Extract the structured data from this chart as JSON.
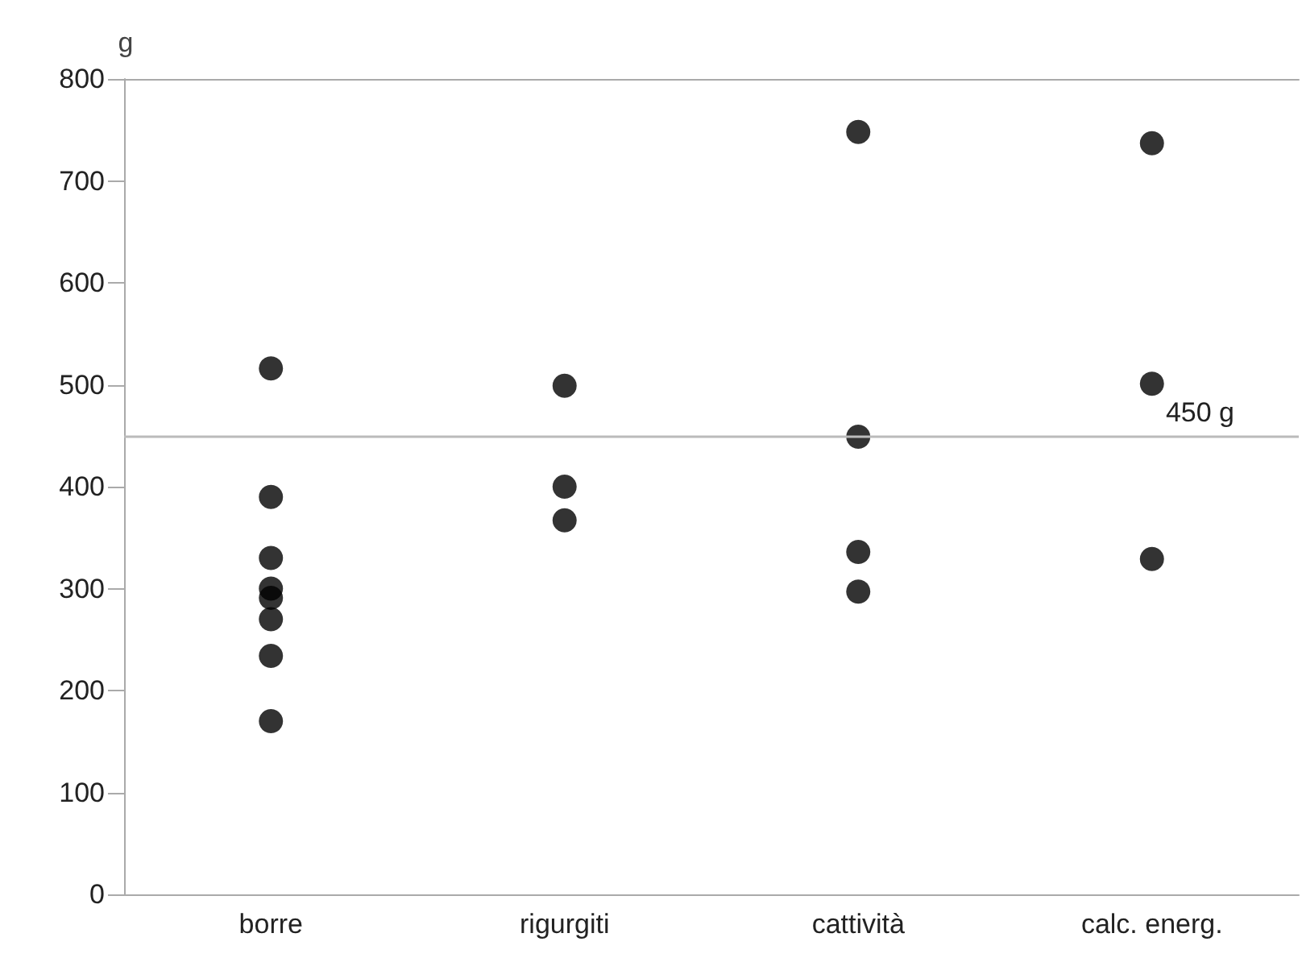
{
  "chart_data": {
    "type": "scatter",
    "ylabel": "g",
    "categories": [
      "borre",
      "rigurgiti",
      "cattività",
      "calc. energ."
    ],
    "series": [
      {
        "color": "#000000",
        "x": [
          "borre",
          "borre",
          "borre",
          "borre",
          "borre",
          "borre",
          "borre",
          "borre",
          "rigurgiti",
          "rigurgiti",
          "rigurgiti",
          "cattività",
          "cattività",
          "cattività",
          "cattività",
          "calc. energ.",
          "calc. energ.",
          "calc. energ."
        ],
        "values": [
          516,
          390,
          330,
          300,
          291,
          270,
          234,
          170,
          499,
          400,
          367,
          748,
          449,
          336,
          297,
          737,
          501,
          329
        ]
      }
    ],
    "ylim": [
      0,
      800
    ],
    "yticks": [
      0,
      100,
      200,
      300,
      400,
      500,
      600,
      700,
      800
    ],
    "grid": false,
    "marker": "circle",
    "ref_lines": [
      {
        "axis": "y",
        "value": 450,
        "label": "450 g",
        "color": "#bbbbbb"
      }
    ]
  }
}
